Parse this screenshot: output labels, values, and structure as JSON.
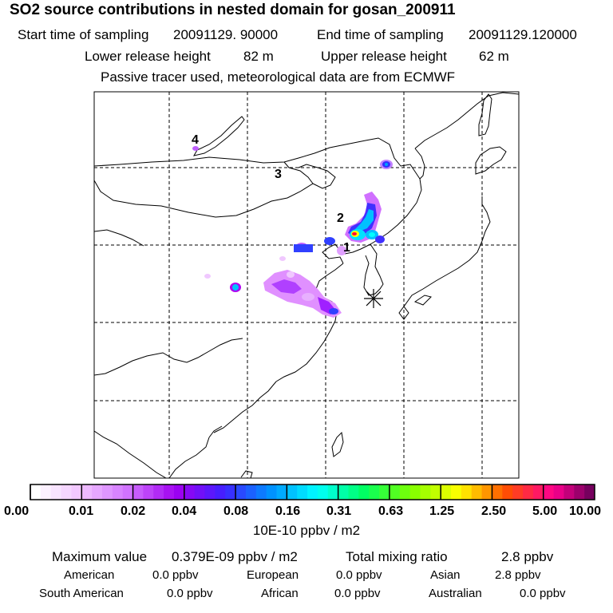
{
  "title": "SO2 source contributions in nested domain for gosan_200911",
  "sampling": {
    "start_label": "Start time of sampling",
    "start_value": "20091129. 90000",
    "end_label": "End time of sampling",
    "end_value": "20091129.120000"
  },
  "release": {
    "lower_label": "Lower release height",
    "lower_value": "82 m",
    "upper_label": "Upper release height",
    "upper_value": "62 m"
  },
  "note": "Passive tracer used, meteorological data are from ECMWF",
  "map_labels": [
    "1",
    "2",
    "3",
    "4"
  ],
  "colorbar": {
    "ticks": [
      "0.00",
      "0.01",
      "0.02",
      "0.04",
      "0.08",
      "0.16",
      "0.31",
      "0.63",
      "1.25",
      "2.50",
      "5.00",
      "10.00"
    ],
    "unit": "10E-10 ppbv / m2"
  },
  "summary": {
    "max_label": "Maximum value",
    "max_value": "0.379E-09 ppbv / m2",
    "total_label": "Total mixing ratio",
    "total_value": "2.8 ppbv"
  },
  "regions": [
    {
      "name": "American",
      "value": "0.0 ppbv"
    },
    {
      "name": "European",
      "value": "0.0 ppbv"
    },
    {
      "name": "Asian",
      "value": "2.8 ppbv"
    },
    {
      "name": "South American",
      "value": "0.0 ppbv"
    },
    {
      "name": "African",
      "value": "0.0 ppbv"
    },
    {
      "name": "Australian",
      "value": "0.0 ppbv"
    }
  ],
  "colors": {
    "colorbar_blocks": [
      "#ffffff",
      "#f4d8ff",
      "#e090ff",
      "#b000f0",
      "#4c20ff",
      "#00a0ff",
      "#00ffff",
      "#00ff66",
      "#3cd000",
      "#ffff00",
      "#ff6000",
      "#ff0090",
      "#a000a0"
    ]
  }
}
